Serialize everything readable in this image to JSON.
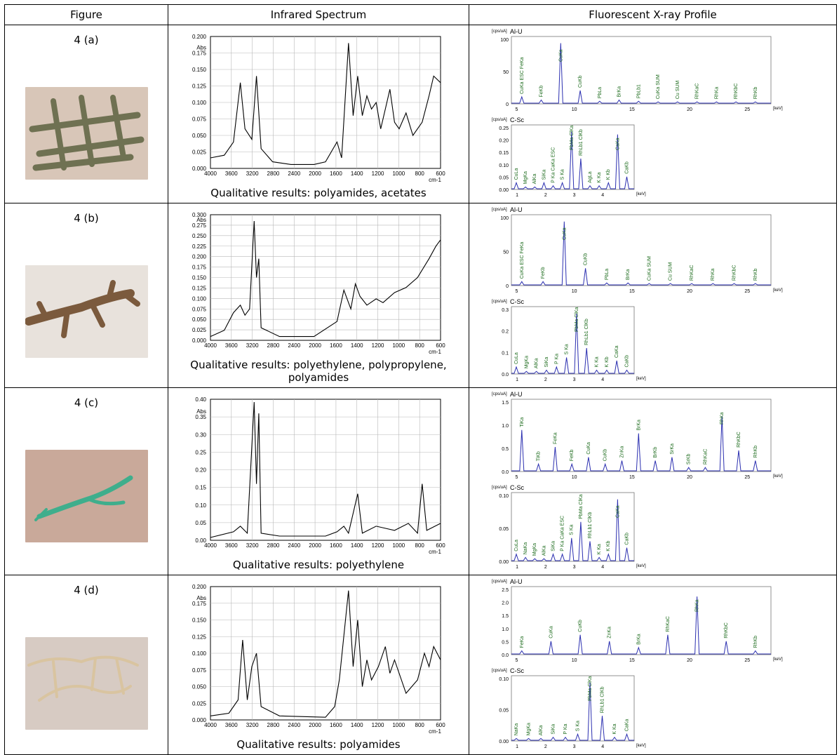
{
  "headers": [
    "Figure",
    "Infrared Spectrum",
    "Fluorescent X-ray Profile"
  ],
  "rows": [
    {
      "label": "4 (a)",
      "photo": {
        "bg": "#d8c6b8",
        "fg": "#6f7152",
        "shape": "grid-net"
      },
      "ir": {
        "ylabel": "Abs",
        "yticks": [
          "0.200",
          "0.175",
          "0.150",
          "0.125",
          "0.100",
          "0.075",
          "0.050",
          "0.025",
          "0.000"
        ],
        "xticks": [
          "4000",
          "3600",
          "3200",
          "2800",
          "2400",
          "2000",
          "1600",
          "1400",
          "1200",
          "1000",
          "800",
          "600"
        ],
        "xunit": "cm-1",
        "caption": "Qualitative results: polyamides, acetates"
      },
      "xrf_top": {
        "unit": "[cps/uA]",
        "title": "Al-U",
        "yticks": [
          "100",
          "50",
          "0"
        ],
        "xticks": [
          "5",
          "10",
          "15",
          "20",
          "25"
        ],
        "xunit": "[keV]",
        "peaks": [
          "CuKa ESC FeKa",
          "FeKb",
          "CuKa",
          "CuKb",
          "PbLa",
          "BrKa",
          "PbLb1",
          "CuKa SUM",
          "Cu SUM",
          "RhKaC",
          "RhKa",
          "RhKbC",
          "RhKb"
        ]
      },
      "xrf_bot": {
        "unit": "[cps/uA]",
        "title": "C-Sc",
        "yticks": [
          "0.25",
          "0.20",
          "0.15",
          "0.10",
          "0.05",
          "0.00"
        ],
        "xticks": [
          "1",
          "2",
          "3",
          "4"
        ],
        "xunit": "[keV]",
        "peaks": [
          "CuLa",
          "MgKa",
          "AlKa",
          "SiKa",
          "P Ka CaKa ESC",
          "S Ka",
          "PbMa ClKa",
          "RhLb1 ClKb",
          "AgLa",
          "K Ka",
          "K Kb",
          "CaKa",
          "CaKb"
        ]
      }
    },
    {
      "label": "4 (b)",
      "photo": {
        "bg": "#e8e2dc",
        "fg": "#7b5a3d",
        "shape": "coral"
      },
      "ir": {
        "ylabel": "Abs",
        "yticks": [
          "0.300",
          "0.275",
          "0.250",
          "0.225",
          "0.200",
          "0.175",
          "0.150",
          "0.125",
          "0.100",
          "0.075",
          "0.050",
          "0.025",
          "0.000"
        ],
        "xticks": [
          "4000",
          "3600",
          "3200",
          "2800",
          "2400",
          "2000",
          "1600",
          "1400",
          "1200",
          "1000",
          "800",
          "600"
        ],
        "xunit": "cm-1",
        "caption": "Qualitative results: polyethylene, polypropylene,",
        "caption2": "polyamides"
      },
      "xrf_top": {
        "unit": "[cps/uA]",
        "title": "Al-U",
        "yticks": [
          "100",
          "50",
          "0"
        ],
        "xticks": [
          "5",
          "10",
          "15",
          "20",
          "25"
        ],
        "xunit": "[keV]",
        "peaks": [
          "CuKa ESC FeKa",
          "FeKb",
          "CuKa",
          "CuKb",
          "PbLa",
          "BrKa",
          "CuKa SUM",
          "Cu SUM",
          "RhKaC",
          "RhKa",
          "RhKbC",
          "RhKb"
        ]
      },
      "xrf_bot": {
        "unit": "[cps/uA]",
        "title": "C-Sc",
        "yticks": [
          "0.3",
          "0.2",
          "0.1",
          "0.0"
        ],
        "xticks": [
          "1",
          "2",
          "3",
          "4"
        ],
        "xunit": "[keV]",
        "peaks": [
          "CuLa",
          "MgKa",
          "AlKa",
          "SiKa",
          "P Ka",
          "S Ka",
          "PbMa ClKa",
          "RhLb1 ClKb",
          "K Ka",
          "K Kb",
          "CaKa",
          "CaKb"
        ]
      }
    },
    {
      "label": "4 (c)",
      "photo": {
        "bg": "#c9a99a",
        "fg": "#3fae8c",
        "shape": "rope"
      },
      "ir": {
        "ylabel": "Abs",
        "yticks": [
          "0.40",
          "0.35",
          "0.30",
          "0.25",
          "0.20",
          "0.15",
          "0.10",
          "0.05",
          "0.00"
        ],
        "xticks": [
          "4000",
          "3600",
          "3200",
          "2800",
          "2400",
          "2000",
          "1600",
          "1400",
          "1200",
          "1000",
          "800",
          "600"
        ],
        "xunit": "cm-1",
        "caption": "Qualitative results: polyethylene"
      },
      "xrf_top": {
        "unit": "[cps/uA]",
        "title": "Al-U",
        "yticks": [
          "1.5",
          "1.0",
          "0.5",
          "0.0"
        ],
        "xticks": [
          "5",
          "10",
          "15",
          "20",
          "25"
        ],
        "xunit": "[keV]",
        "peaks": [
          "TiKa",
          "TiKb",
          "FeKa",
          "FeKb",
          "CuKa",
          "CuKb",
          "ZnKa",
          "BrKa",
          "BrKb",
          "SrKa",
          "SrKb",
          "RhKaC",
          "RhKa",
          "RhKbC",
          "RhKb"
        ]
      },
      "xrf_bot": {
        "unit": "[cps/uA]",
        "title": "C-Sc",
        "yticks": [
          "0.10",
          "0.05",
          "0.00"
        ],
        "xticks": [
          "1",
          "2",
          "3",
          "4"
        ],
        "xunit": "[keV]",
        "peaks": [
          "CuLa",
          "NaKa",
          "MgKa",
          "AlKa",
          "SiKa",
          "P Ka CaKa ESC",
          "S Ka",
          "PbMa ClKa",
          "RhLb1 ClKb",
          "K Ka",
          "K Kb",
          "CaKa",
          "CaKb"
        ]
      }
    },
    {
      "label": "4 (d)",
      "photo": {
        "bg": "#d7cbc3",
        "fg": "#d9c4a0",
        "shape": "knots"
      },
      "ir": {
        "ylabel": "Abs",
        "yticks": [
          "0.200",
          "0.175",
          "0.150",
          "0.125",
          "0.100",
          "0.075",
          "0.050",
          "0.025",
          "0.000"
        ],
        "xticks": [
          "4000",
          "3600",
          "3200",
          "2800",
          "2400",
          "2000",
          "1600",
          "1400",
          "1200",
          "1000",
          "800",
          "600"
        ],
        "xunit": "cm-1",
        "caption": "Qualitative results: polyamides"
      },
      "xrf_top": {
        "unit": "[cps/uA]",
        "title": "Al-U",
        "yticks": [
          "2.5",
          "2.0",
          "1.5",
          "1.0",
          "0.5",
          "0.0"
        ],
        "xticks": [
          "5",
          "10",
          "15",
          "20",
          "25"
        ],
        "xunit": "[keV]",
        "peaks": [
          "FeKa",
          "CuKa",
          "CuKb",
          "ZnKa",
          "BrKa",
          "RhKaC",
          "RhKa",
          "RhKbC",
          "RhKb"
        ]
      },
      "xrf_bot": {
        "unit": "[cps/uA]",
        "title": "C-Sc",
        "yticks": [
          "0.10",
          "0.05",
          "0.00"
        ],
        "xticks": [
          "1",
          "2",
          "3",
          "4"
        ],
        "xunit": "[keV]",
        "peaks": [
          "NaKa",
          "MgKa",
          "AlKa",
          "SiKa",
          "P Ka",
          "S Ka",
          "PbMa ClKa",
          "RhLb1 ClKb",
          "K Ka",
          "CaKa"
        ]
      }
    }
  ],
  "colors": {
    "xrf_line": "#2b2fb0",
    "peak_label": "#1c6b1c",
    "ir_line": "#000000",
    "grid": "#b8b8b8"
  }
}
